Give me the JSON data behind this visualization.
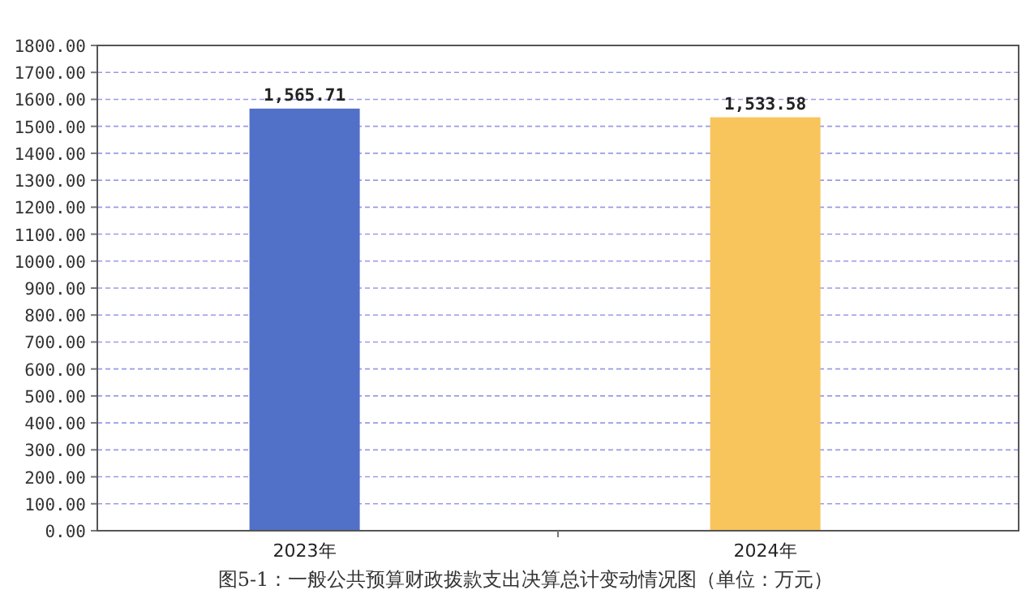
{
  "chart_data": {
    "type": "bar",
    "categories": [
      "2023年",
      "2024年"
    ],
    "values": [
      1565.71,
      1533.58
    ],
    "colors": [
      "#5170c8",
      "#f8c55c"
    ],
    "value_labels": [
      "1,565.71",
      "1,533.58"
    ],
    "ylim": [
      0,
      1800
    ],
    "yticks": [
      {
        "value": 0,
        "label": "0.00"
      },
      {
        "value": 100,
        "label": "100.00"
      },
      {
        "value": 200,
        "label": "200.00"
      },
      {
        "value": 300,
        "label": "300.00"
      },
      {
        "value": 400,
        "label": "400.00"
      },
      {
        "value": 500,
        "label": "500.00"
      },
      {
        "value": 600,
        "label": "600.00"
      },
      {
        "value": 700,
        "label": "700.00"
      },
      {
        "value": 800,
        "label": "800.00"
      },
      {
        "value": 900,
        "label": "900.00"
      },
      {
        "value": 1000,
        "label": "1000.00"
      },
      {
        "value": 1100,
        "label": "1100.00"
      },
      {
        "value": 1200,
        "label": "1200.00"
      },
      {
        "value": 1300,
        "label": "1300.00"
      },
      {
        "value": 1400,
        "label": "1400.00"
      },
      {
        "value": 1500,
        "label": "1500.00"
      },
      {
        "value": 1600,
        "label": "1600.00"
      },
      {
        "value": 1700,
        "label": "1700.00"
      },
      {
        "value": 1800,
        "label": "1800.00"
      }
    ],
    "grid": "y",
    "annotations": [
      "图5-1：一般公共预算财政拨款支出决算总计变动情况图（单位：万元）"
    ]
  }
}
